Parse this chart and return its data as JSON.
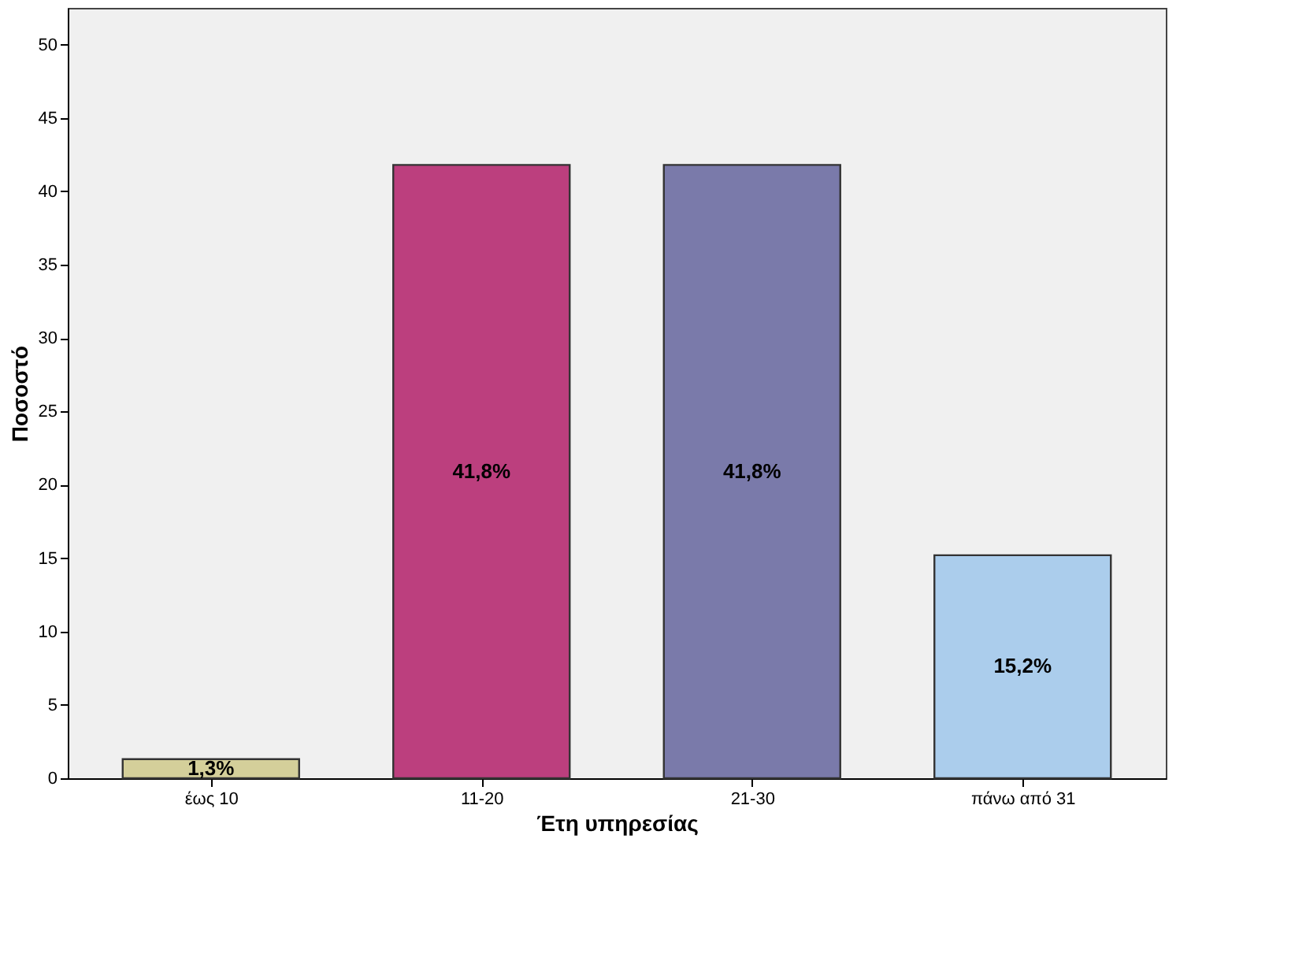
{
  "chart_data": {
    "type": "bar",
    "xlabel": "Έτη υπηρεσίας",
    "ylabel": "Ποσοστό",
    "categories": [
      "έως 10",
      "11-20",
      "21-30",
      "πάνω από 31"
    ],
    "values": [
      1.3,
      41.8,
      41.8,
      15.2
    ],
    "colors": [
      "#d4cf9a",
      "#bc3f7e",
      "#7a7aaa",
      "#abcdec"
    ],
    "value_labels": [
      "1,3%",
      "41,8%",
      "41,8%",
      "15,2%"
    ],
    "ylim": [
      0,
      52.5
    ],
    "yticks": [
      0,
      5,
      10,
      15,
      20,
      25,
      30,
      35,
      40,
      45,
      50
    ],
    "grid": false
  }
}
